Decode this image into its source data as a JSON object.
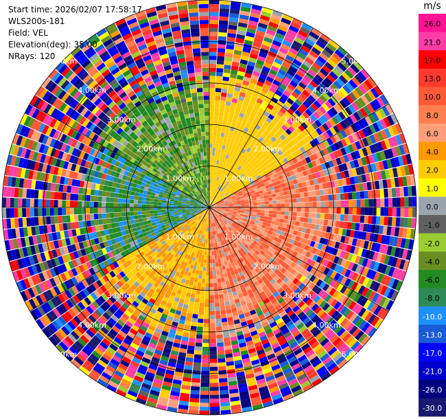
{
  "header": {
    "start_time": "Start time: 2026/02/07 17:58:17",
    "instrument": "WLS200s-181",
    "field": "Field: VEL",
    "elevation": "Elevation(deg): 35.00",
    "nrays": "NRays: 120"
  },
  "colorbar": {
    "unit": "m/s",
    "ticks": [
      "26.0",
      "21.0",
      "17.0",
      "13.0",
      "10.0",
      "8.0",
      "6.0",
      "4.0",
      "2.0",
      "1.0",
      "0.0",
      "-1.0",
      "-2.0",
      "-4.0",
      "-6.0",
      "-8.0",
      "-10.0",
      "-13.0",
      "-17.0",
      "-21.0",
      "-26.0",
      "-30.0"
    ],
    "colors": [
      "#ff1493",
      "#ff3ea5",
      "#ff0000",
      "#ff3b30",
      "#ff5a36",
      "#ff7f50",
      "#ffa07a",
      "#ff9900",
      "#ffcc00",
      "#ffff00",
      "#9aa5ad",
      "#606060",
      "#9acd32",
      "#6b8e23",
      "#228b22",
      "#2e8b57",
      "#1e90ff",
      "#1c5bd6",
      "#0000ff",
      "#0000cd",
      "#000080",
      "#191970"
    ]
  },
  "chart_data": {
    "type": "ppi",
    "field": "VEL",
    "unit": "m/s",
    "nrays": 120,
    "range_rings_km": [
      1.0,
      2.0,
      3.0,
      4.0,
      5.0
    ],
    "ring_labels": [
      "1.00km",
      "2.00km",
      "3.00km",
      "4.00km",
      "5.00km"
    ],
    "color_scale_m_s": [
      26.0,
      21.0,
      17.0,
      13.0,
      10.0,
      8.0,
      6.0,
      4.0,
      2.0,
      1.0,
      0.0,
      -1.0,
      -2.0,
      -4.0,
      -6.0,
      -8.0,
      -10.0,
      -13.0,
      -17.0,
      -21.0,
      -26.0,
      -30.0
    ],
    "description_sectors": [
      {
        "azimuth_deg": [
          0,
          60
        ],
        "velocity_m_s": [
          2,
          4
        ]
      },
      {
        "azimuth_deg": [
          60,
          180
        ],
        "velocity_m_s": [
          6,
          13
        ]
      },
      {
        "azimuth_deg": [
          180,
          240
        ],
        "velocity_m_s": [
          2,
          6
        ]
      },
      {
        "azimuth_deg": [
          240,
          300
        ],
        "velocity_m_s": [
          -10,
          -2
        ]
      },
      {
        "azimuth_deg": [
          300,
          360
        ],
        "velocity_m_s": [
          -6,
          -1
        ]
      }
    ]
  }
}
